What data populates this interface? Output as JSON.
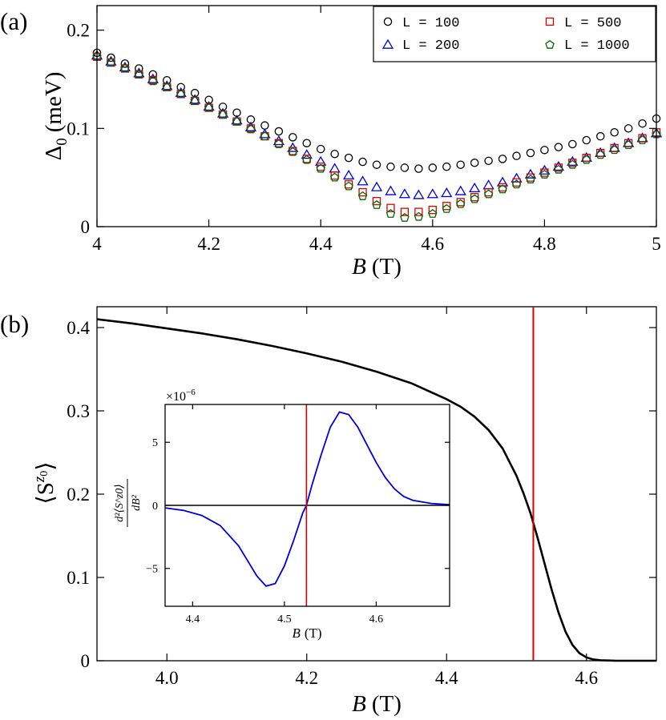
{
  "chart_data": [
    {
      "panel": "a",
      "panel_label": "(a)",
      "type": "scatter",
      "xlabel_var": "B",
      "xlabel_unit": "(T)",
      "ylabel_var": "Δ",
      "ylabel_sub": "0",
      "ylabel_unit": "(meV)",
      "xlim": [
        4.0,
        5.0
      ],
      "ylim": [
        0,
        0.225
      ],
      "xticks": [
        "4",
        "4.2",
        "4.4",
        "4.6",
        "4.8",
        "5"
      ],
      "xtick_values": [
        4.0,
        4.2,
        4.4,
        4.6,
        4.8,
        5.0
      ],
      "yticks": [
        "0",
        "0.1",
        "0.2"
      ],
      "ytick_values": [
        0,
        0.1,
        0.2
      ],
      "x": [
        4.0,
        4.025,
        4.05,
        4.075,
        4.1,
        4.125,
        4.15,
        4.175,
        4.2,
        4.225,
        4.25,
        4.275,
        4.3,
        4.325,
        4.35,
        4.375,
        4.4,
        4.425,
        4.45,
        4.475,
        4.5,
        4.525,
        4.55,
        4.575,
        4.6,
        4.625,
        4.65,
        4.675,
        4.7,
        4.725,
        4.75,
        4.775,
        4.8,
        4.825,
        4.85,
        4.875,
        4.9,
        4.925,
        4.95,
        4.975,
        5.0
      ],
      "series": [
        {
          "name": "L = 100",
          "marker": "circle",
          "color": "#000000",
          "values": [
            0.177,
            0.172,
            0.166,
            0.161,
            0.155,
            0.149,
            0.142,
            0.136,
            0.129,
            0.122,
            0.116,
            0.109,
            0.103,
            0.097,
            0.091,
            0.085,
            0.079,
            0.074,
            0.07,
            0.066,
            0.063,
            0.061,
            0.06,
            0.059,
            0.06,
            0.061,
            0.063,
            0.065,
            0.067,
            0.069,
            0.072,
            0.075,
            0.078,
            0.081,
            0.084,
            0.088,
            0.092,
            0.096,
            0.1,
            0.105,
            0.11
          ]
        },
        {
          "name": "L = 200",
          "marker": "triangle",
          "color": "#0000dd",
          "values": [
            0.174,
            0.168,
            0.162,
            0.156,
            0.15,
            0.143,
            0.136,
            0.129,
            0.122,
            0.115,
            0.108,
            0.101,
            0.094,
            0.087,
            0.08,
            0.073,
            0.066,
            0.059,
            0.052,
            0.046,
            0.04,
            0.036,
            0.033,
            0.032,
            0.033,
            0.034,
            0.036,
            0.039,
            0.042,
            0.045,
            0.049,
            0.053,
            0.057,
            0.061,
            0.066,
            0.07,
            0.075,
            0.08,
            0.085,
            0.09,
            0.095
          ]
        },
        {
          "name": "L = 500",
          "marker": "square",
          "color": "#dd0000",
          "values": [
            0.173,
            0.167,
            0.161,
            0.155,
            0.149,
            0.142,
            0.135,
            0.128,
            0.121,
            0.114,
            0.107,
            0.1,
            0.092,
            0.085,
            0.077,
            0.069,
            0.061,
            0.052,
            0.043,
            0.035,
            0.026,
            0.019,
            0.015,
            0.015,
            0.017,
            0.021,
            0.025,
            0.03,
            0.035,
            0.04,
            0.045,
            0.05,
            0.055,
            0.06,
            0.065,
            0.07,
            0.075,
            0.08,
            0.085,
            0.09,
            0.096
          ]
        },
        {
          "name": "L = 1000",
          "marker": "pentagon",
          "color": "#006600",
          "values": [
            0.173,
            0.167,
            0.161,
            0.155,
            0.148,
            0.142,
            0.135,
            0.128,
            0.121,
            0.114,
            0.107,
            0.099,
            0.092,
            0.084,
            0.076,
            0.068,
            0.059,
            0.05,
            0.041,
            0.031,
            0.022,
            0.013,
            0.009,
            0.01,
            0.013,
            0.018,
            0.023,
            0.028,
            0.033,
            0.038,
            0.043,
            0.048,
            0.053,
            0.058,
            0.063,
            0.068,
            0.073,
            0.078,
            0.083,
            0.088,
            0.094
          ]
        }
      ],
      "legend_position": "top-right"
    },
    {
      "panel": "b",
      "panel_label": "(b)",
      "type": "line",
      "xlabel_var": "B",
      "xlabel_unit": "(T)",
      "ylabel_text": "⟨S",
      "ylabel_sup": "z",
      "ylabel_sup_sub": "0",
      "ylabel_close": "⟩",
      "xlim": [
        3.9,
        4.7
      ],
      "ylim": [
        0,
        0.425
      ],
      "xticks": [
        "4.0",
        "4.2",
        "4.4",
        "4.6"
      ],
      "xtick_values": [
        4.0,
        4.2,
        4.4,
        4.6
      ],
      "yticks": [
        "0",
        "0.1",
        "0.2",
        "0.3",
        "0.4"
      ],
      "ytick_values": [
        0,
        0.1,
        0.2,
        0.3,
        0.4
      ],
      "series": [
        {
          "name": "Sz0",
          "color": "#000000",
          "x": [
            3.9,
            3.95,
            4.0,
            4.05,
            4.1,
            4.15,
            4.2,
            4.25,
            4.3,
            4.35,
            4.4,
            4.42,
            4.44,
            4.46,
            4.48,
            4.5,
            4.51,
            4.52,
            4.53,
            4.54,
            4.55,
            4.56,
            4.57,
            4.58,
            4.59,
            4.6,
            4.61,
            4.62,
            4.64,
            4.66,
            4.7
          ],
          "values": [
            0.41,
            0.405,
            0.399,
            0.393,
            0.386,
            0.378,
            0.369,
            0.359,
            0.347,
            0.333,
            0.314,
            0.305,
            0.293,
            0.277,
            0.255,
            0.222,
            0.201,
            0.177,
            0.148,
            0.117,
            0.086,
            0.058,
            0.035,
            0.019,
            0.009,
            0.004,
            0.0015,
            0.0006,
            0.0001,
            0.0,
            0.0
          ]
        }
      ],
      "vline": {
        "x": 4.524,
        "color": "#dd0000"
      },
      "inset": {
        "type": "line",
        "xlabel_var": "B",
        "xlabel_unit": "(T)",
        "ylabel_num": "d²⟨S^z0⟩",
        "ylabel_den": "dB²",
        "multiplier": "×10",
        "multiplier_exp": "−6",
        "xlim": [
          4.37,
          4.68
        ],
        "ylim": [
          -8.0,
          8.0
        ],
        "xticks": [
          "4.4",
          "4.5",
          "4.6"
        ],
        "xtick_values": [
          4.4,
          4.5,
          4.6
        ],
        "yticks": [
          "−5",
          "0",
          "5"
        ],
        "ytick_values": [
          -5,
          0,
          5
        ],
        "hline": {
          "y": 0,
          "color": "#000000"
        },
        "vline": {
          "x": 4.524,
          "color": "#dd0000"
        },
        "series": [
          {
            "name": "d2Sz0",
            "color": "#0000dd",
            "x": [
              4.37,
              4.39,
              4.41,
              4.43,
              4.45,
              4.46,
              4.47,
              4.48,
              4.49,
              4.5,
              4.51,
              4.52,
              4.524,
              4.53,
              4.54,
              4.55,
              4.56,
              4.57,
              4.58,
              4.59,
              4.6,
              4.61,
              4.62,
              4.63,
              4.64,
              4.66,
              4.68
            ],
            "values": [
              -0.2,
              -0.4,
              -0.8,
              -1.6,
              -3.2,
              -4.4,
              -5.6,
              -6.4,
              -6.2,
              -4.8,
              -2.8,
              -0.6,
              0.0,
              1.6,
              4.0,
              6.2,
              7.4,
              7.2,
              6.2,
              4.8,
              3.4,
              2.2,
              1.3,
              0.7,
              0.4,
              0.15,
              0.05
            ]
          }
        ]
      }
    }
  ]
}
